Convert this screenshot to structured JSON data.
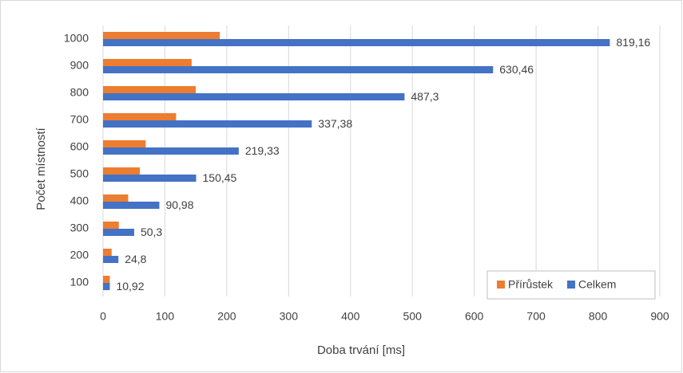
{
  "chart_data": {
    "type": "barh",
    "x_label": "Doba trvání [ms]",
    "y_label": "Počet místností",
    "categories": [
      "100",
      "200",
      "300",
      "400",
      "500",
      "600",
      "700",
      "800",
      "900",
      "1000"
    ],
    "series": [
      {
        "name": "Přírůstek",
        "color": "#ed7d31",
        "values": [
          10.92,
          13.88,
          25.5,
          40.68,
          59.47,
          68.88,
          118.05,
          149.92,
          143.16,
          188.7
        ]
      },
      {
        "name": "Celkem",
        "color": "#4472c4",
        "values": [
          10.92,
          24.8,
          50.3,
          90.98,
          150.45,
          219.33,
          337.38,
          487.3,
          630.46,
          819.16
        ],
        "value_labels": [
          "10,92",
          "24,8",
          "50,3",
          "90,98",
          "150,45",
          "219,33",
          "337,38",
          "487,3",
          "630,46",
          "819,16"
        ]
      }
    ],
    "xlim": [
      0,
      900
    ],
    "xticks": [
      0,
      100,
      200,
      300,
      400,
      500,
      600,
      700,
      800,
      900
    ],
    "grid": true,
    "legend": "lower right"
  }
}
